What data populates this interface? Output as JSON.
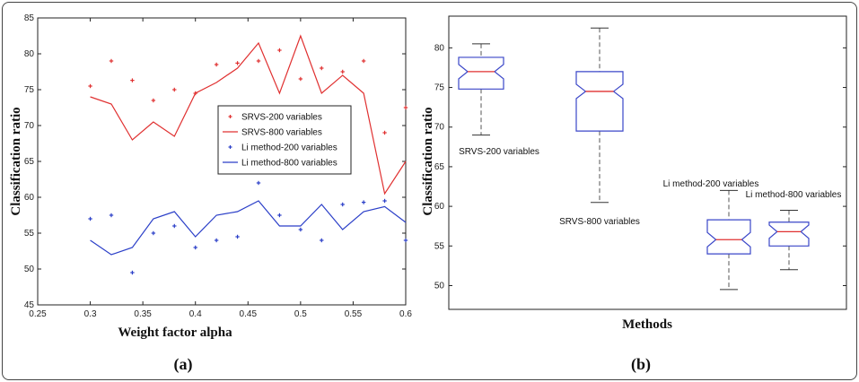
{
  "chart_data": [
    {
      "type": "line",
      "panel_label": "(a)",
      "xlabel": "Weight factor alpha",
      "ylabel": "Classification ratio",
      "xlim": [
        0.25,
        0.6
      ],
      "ylim": [
        45,
        85
      ],
      "xticks": [
        "0.25",
        "0.3",
        "0.35",
        "0.4",
        "0.45",
        "0.5",
        "0.55",
        "0.6"
      ],
      "yticks": [
        "45",
        "50",
        "55",
        "60",
        "65",
        "70",
        "75",
        "80",
        "85"
      ],
      "x": [
        0.3,
        0.32,
        0.34,
        0.36,
        0.38,
        0.4,
        0.42,
        0.44,
        0.46,
        0.48,
        0.5,
        0.52,
        0.54,
        0.56,
        0.58,
        0.6
      ],
      "series": [
        {
          "name": "SRVS-200 variables",
          "style": "marker",
          "color": "#e03030",
          "values": [
            75.5,
            79.0,
            76.3,
            73.5,
            75.0,
            74.5,
            78.5,
            78.7,
            79.0,
            80.5,
            76.5,
            78.0,
            77.5,
            79.0,
            69.0,
            72.5
          ]
        },
        {
          "name": "SRVS-800 variables",
          "style": "line",
          "color": "#e03030",
          "values": [
            74.0,
            73.0,
            68.0,
            70.5,
            68.5,
            74.5,
            76.0,
            78.0,
            81.5,
            74.5,
            82.5,
            74.5,
            77.0,
            74.5,
            60.5,
            65.0
          ]
        },
        {
          "name": "Li method-200 variables",
          "style": "marker",
          "color": "#2b3fc8",
          "values": [
            57.0,
            57.5,
            49.5,
            55.0,
            56.0,
            53.0,
            54.0,
            54.5,
            62.0,
            57.5,
            55.5,
            54.0,
            59.0,
            59.3,
            59.5,
            54.0
          ]
        },
        {
          "name": "Li method-800 variables",
          "style": "line",
          "color": "#2b3fc8",
          "values": [
            54.0,
            52.0,
            53.0,
            57.0,
            58.0,
            54.5,
            57.5,
            58.0,
            59.5,
            56.0,
            56.0,
            59.0,
            55.5,
            58.0,
            58.7,
            56.5
          ]
        }
      ],
      "legend": "center-right"
    },
    {
      "type": "box",
      "panel_label": "(b)",
      "xlabel": "Methods",
      "ylabel": "Classification ratio",
      "ylim": [
        47,
        84
      ],
      "yticks": [
        "50",
        "55",
        "60",
        "65",
        "70",
        "75",
        "80"
      ],
      "boxes": [
        {
          "label": "SRVS-200 variables",
          "min": 69.0,
          "q1": 74.8,
          "median": 77.0,
          "q3": 78.8,
          "max": 80.5
        },
        {
          "label": "SRVS-800 variables",
          "min": 60.5,
          "q1": 69.5,
          "median": 74.5,
          "q3": 77.0,
          "max": 82.5
        },
        {
          "label": "Li method-200 variables",
          "min": 49.5,
          "q1": 54.0,
          "median": 55.8,
          "q3": 58.3,
          "max": 62.0
        },
        {
          "label": "Li method-800 variables",
          "min": 52.0,
          "q1": 55.0,
          "median": 56.8,
          "q3": 58.0,
          "max": 59.5
        }
      ]
    }
  ]
}
